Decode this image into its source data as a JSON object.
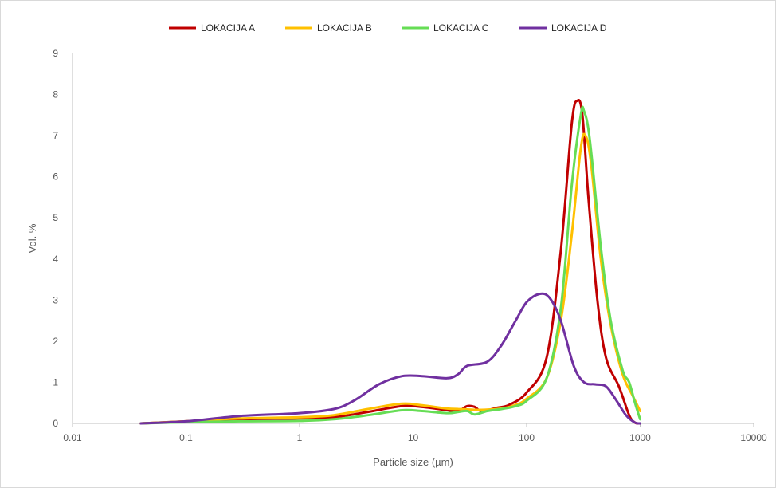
{
  "chart_data": {
    "type": "line",
    "title": "",
    "xlabel": "Particle size (µm)",
    "ylabel": "Vol. %",
    "xscale": "log",
    "xlim": [
      0.01,
      10000
    ],
    "ylim": [
      0,
      9
    ],
    "x_ticks": [
      0.01,
      0.1,
      1,
      10,
      100,
      1000,
      10000
    ],
    "x_tick_labels": [
      "0.01",
      "0.1",
      "1",
      "10",
      "100",
      "1000",
      "10000"
    ],
    "y_ticks": [
      0,
      1,
      2,
      3,
      4,
      5,
      6,
      7,
      8,
      9
    ],
    "y_tick_labels": [
      "0",
      "1",
      "2",
      "3",
      "4",
      "5",
      "6",
      "7",
      "8",
      "9"
    ],
    "grid": false,
    "legend_position": "top",
    "series": [
      {
        "name": "LOKACIJA A",
        "color": "#c00000",
        "points": [
          [
            0.04,
            0
          ],
          [
            0.1,
            0.05
          ],
          [
            0.3,
            0.1
          ],
          [
            1,
            0.12
          ],
          [
            2,
            0.15
          ],
          [
            4,
            0.28
          ],
          [
            8,
            0.42
          ],
          [
            12,
            0.4
          ],
          [
            20,
            0.32
          ],
          [
            25,
            0.3
          ],
          [
            30,
            0.42
          ],
          [
            35,
            0.4
          ],
          [
            40,
            0.3
          ],
          [
            55,
            0.38
          ],
          [
            70,
            0.45
          ],
          [
            100,
            0.75
          ],
          [
            150,
            1.6
          ],
          [
            200,
            4.2
          ],
          [
            250,
            7.3
          ],
          [
            280,
            7.85
          ],
          [
            310,
            7.5
          ],
          [
            350,
            5.5
          ],
          [
            420,
            3.0
          ],
          [
            500,
            1.6
          ],
          [
            650,
            0.9
          ],
          [
            800,
            0.2
          ],
          [
            900,
            0.02
          ],
          [
            1000,
            0
          ]
        ]
      },
      {
        "name": "LOKACIJA B",
        "color": "#ffc000",
        "points": [
          [
            0.04,
            0
          ],
          [
            0.1,
            0.05
          ],
          [
            0.3,
            0.12
          ],
          [
            1,
            0.15
          ],
          [
            2,
            0.2
          ],
          [
            4,
            0.35
          ],
          [
            8,
            0.48
          ],
          [
            12,
            0.44
          ],
          [
            20,
            0.36
          ],
          [
            25,
            0.35
          ],
          [
            30,
            0.34
          ],
          [
            40,
            0.33
          ],
          [
            60,
            0.36
          ],
          [
            80,
            0.45
          ],
          [
            100,
            0.6
          ],
          [
            150,
            1.1
          ],
          [
            200,
            2.5
          ],
          [
            250,
            4.6
          ],
          [
            300,
            6.7
          ],
          [
            330,
            7.0
          ],
          [
            370,
            6.3
          ],
          [
            450,
            4.0
          ],
          [
            550,
            2.4
          ],
          [
            700,
            1.2
          ],
          [
            850,
            0.7
          ],
          [
            1000,
            0.3
          ]
        ]
      },
      {
        "name": "LOKACIJA C",
        "color": "#66dd55",
        "points": [
          [
            0.04,
            0
          ],
          [
            0.1,
            0.03
          ],
          [
            0.3,
            0.05
          ],
          [
            1,
            0.06
          ],
          [
            2,
            0.1
          ],
          [
            4,
            0.2
          ],
          [
            8,
            0.32
          ],
          [
            12,
            0.3
          ],
          [
            20,
            0.25
          ],
          [
            25,
            0.28
          ],
          [
            30,
            0.3
          ],
          [
            35,
            0.22
          ],
          [
            45,
            0.3
          ],
          [
            60,
            0.35
          ],
          [
            80,
            0.42
          ],
          [
            100,
            0.55
          ],
          [
            150,
            1.1
          ],
          [
            200,
            2.8
          ],
          [
            250,
            5.8
          ],
          [
            300,
            7.5
          ],
          [
            320,
            7.6
          ],
          [
            360,
            6.9
          ],
          [
            450,
            4.3
          ],
          [
            550,
            2.5
          ],
          [
            700,
            1.3
          ],
          [
            800,
            1.0
          ],
          [
            900,
            0.5
          ],
          [
            1000,
            0.1
          ]
        ]
      },
      {
        "name": "LOKACIJA D",
        "color": "#7030a0",
        "points": [
          [
            0.04,
            0
          ],
          [
            0.1,
            0.05
          ],
          [
            0.3,
            0.18
          ],
          [
            1,
            0.25
          ],
          [
            2,
            0.35
          ],
          [
            3,
            0.55
          ],
          [
            5,
            0.95
          ],
          [
            8,
            1.15
          ],
          [
            12,
            1.15
          ],
          [
            20,
            1.1
          ],
          [
            25,
            1.2
          ],
          [
            30,
            1.4
          ],
          [
            45,
            1.5
          ],
          [
            60,
            1.9
          ],
          [
            80,
            2.5
          ],
          [
            100,
            2.95
          ],
          [
            130,
            3.15
          ],
          [
            160,
            3.05
          ],
          [
            200,
            2.5
          ],
          [
            260,
            1.4
          ],
          [
            320,
            1.0
          ],
          [
            400,
            0.95
          ],
          [
            500,
            0.9
          ],
          [
            620,
            0.55
          ],
          [
            750,
            0.2
          ],
          [
            900,
            0.02
          ],
          [
            1000,
            0
          ]
        ]
      }
    ]
  }
}
